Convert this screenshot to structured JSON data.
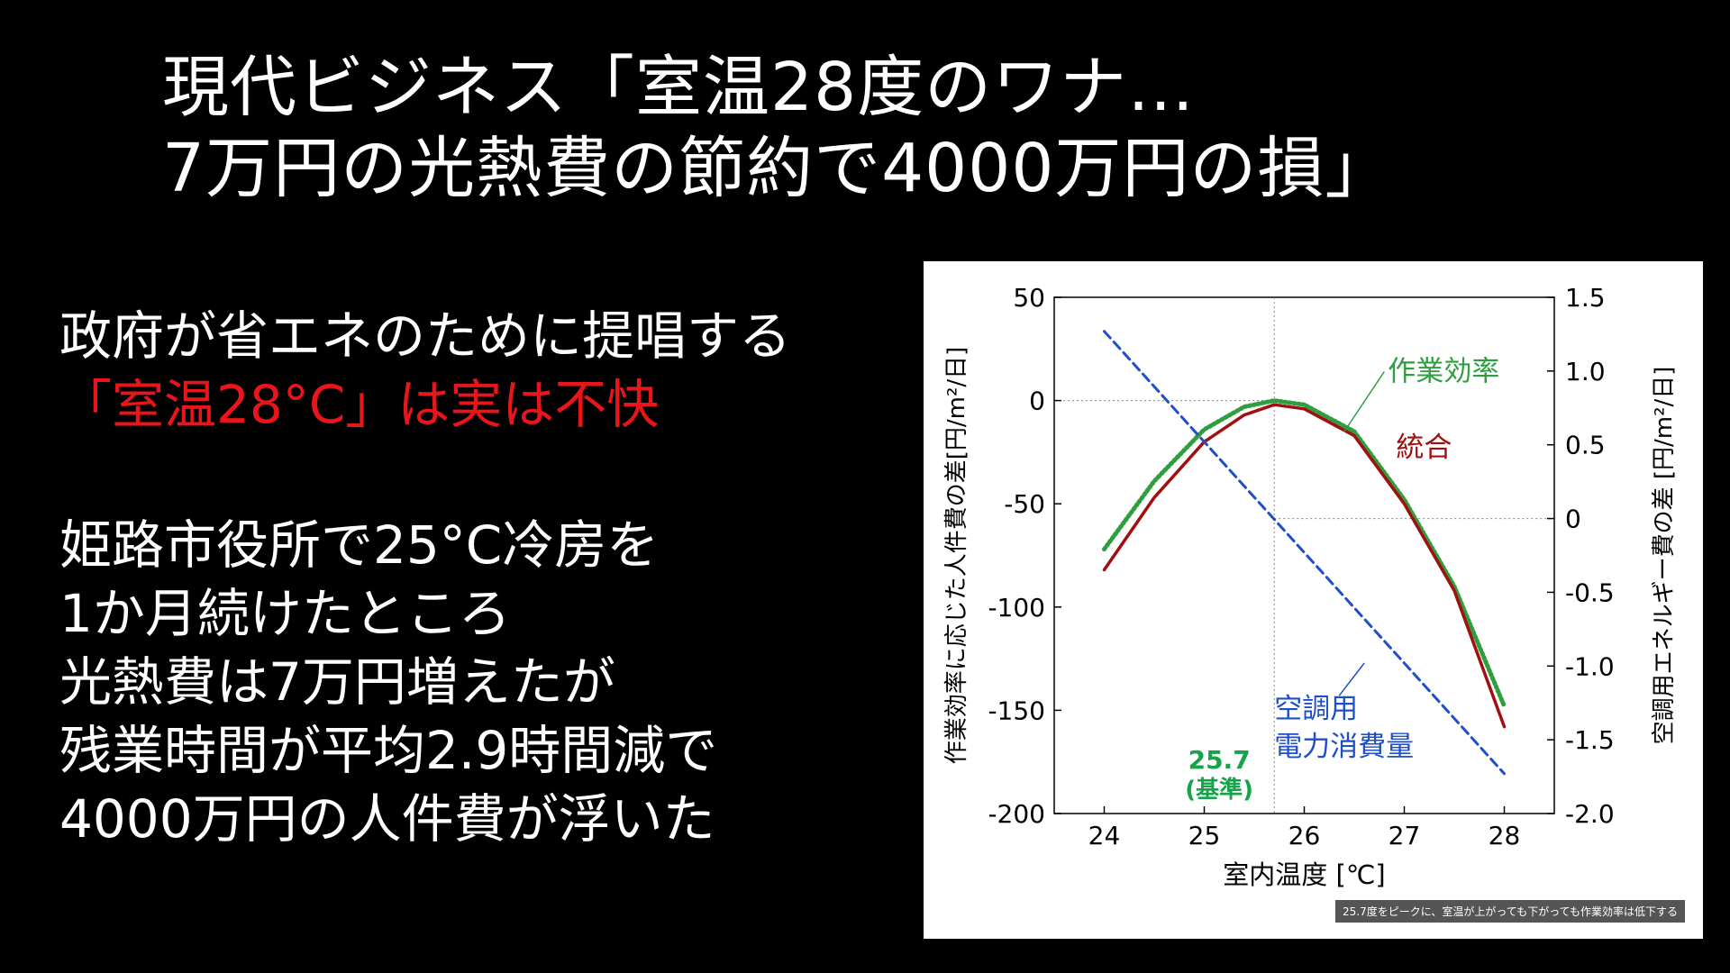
{
  "title": {
    "line1": "現代ビジネス「室温28度のワナ…",
    "line2": "7万円の光熱費の節約で4000万円の損」"
  },
  "body": {
    "line1": "政府が省エネのために提唱する",
    "line2": "「室温28°C」は実は不快",
    "line3": "姫路市役所で25°C冷房を",
    "line4": "1か月続けたところ",
    "line5": "光熱費は7万円増えたが",
    "line6": "残業時間が平均2.9時間減で",
    "line7": "4000万円の人件費が浮いた",
    "highlight_color": "#e8161a"
  },
  "chart_data": {
    "type": "line",
    "xlabel": "室内温度 [℃]",
    "ylabel_left": "作業効率に応じた人件費の差[円/m²/日]",
    "ylabel_right": "空調用エネルギー費の差 [円/m²/日]",
    "xlim": [
      23.5,
      28.5
    ],
    "ylim_left": [
      -200,
      50
    ],
    "ylim_right": [
      -2.0,
      1.5
    ],
    "x_ticks": [
      "24",
      "25",
      "26",
      "27",
      "28"
    ],
    "y_left_ticks": [
      "50",
      "0",
      "-50",
      "-100",
      "-150",
      "-200"
    ],
    "y_right_ticks": [
      "1.5",
      "1.0",
      "0.5",
      "0",
      "-0.5",
      "-1.0",
      "-1.5",
      "-2.0"
    ],
    "reference": {
      "x": 25.7,
      "label_value": "25.7",
      "label_text": "(基準)",
      "color": "#17a34a"
    },
    "series": [
      {
        "name": "作業効率",
        "axis": "left",
        "color": "#2e9e3e",
        "style": "dotted",
        "x": [
          24,
          24.5,
          25,
          25.4,
          25.7,
          26,
          26.5,
          27,
          27.5,
          28
        ],
        "y": [
          -72,
          -39,
          -14,
          -3,
          0,
          -2,
          -15,
          -48,
          -90,
          -148
        ]
      },
      {
        "name": "統合",
        "axis": "left",
        "color": "#a01010",
        "style": "solid",
        "x": [
          24,
          24.5,
          25,
          25.4,
          25.7,
          26,
          26.5,
          27,
          27.5,
          28
        ],
        "y": [
          -82,
          -47,
          -20,
          -7,
          -2,
          -4,
          -17,
          -50,
          -92,
          -158
        ]
      },
      {
        "name": "空調用電力消費量",
        "name_lines": [
          "空調用",
          "電力消費量"
        ],
        "axis": "right",
        "color": "#1f4fc8",
        "style": "dashed",
        "x": [
          24,
          28
        ],
        "y": [
          1.27,
          -1.73
        ]
      }
    ],
    "caption": "25.7度をピークに、室温が上がっても下がっても作業効率は低下する"
  }
}
